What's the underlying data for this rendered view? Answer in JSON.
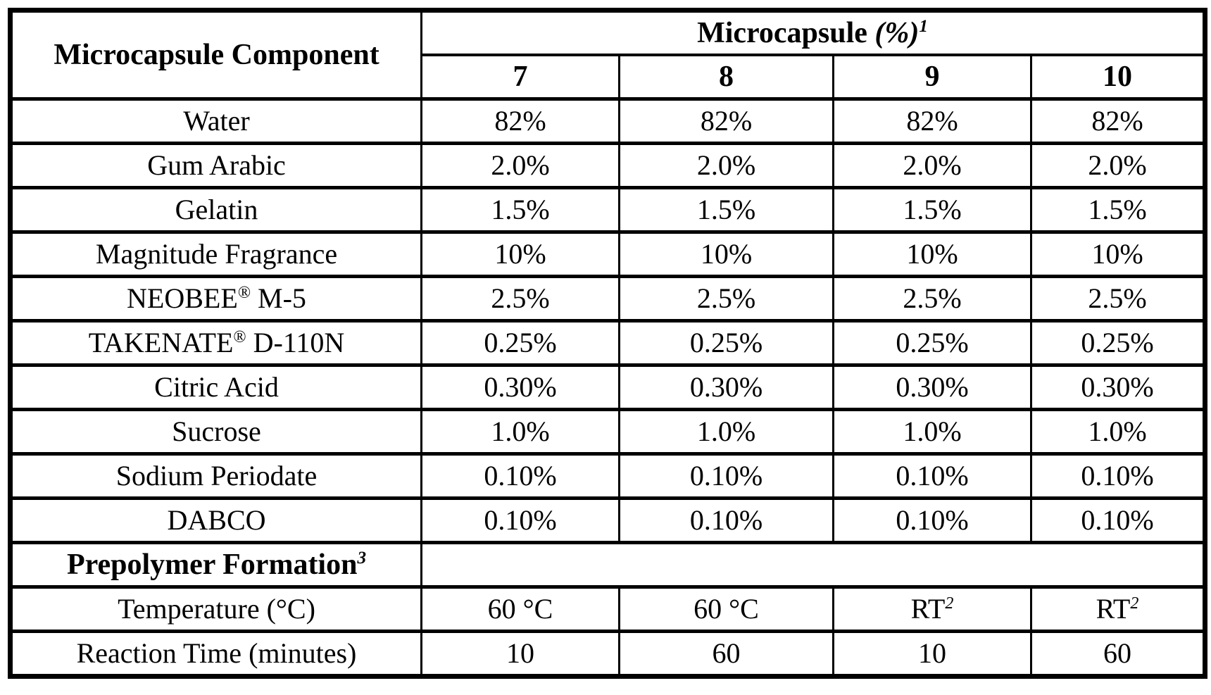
{
  "table": {
    "header": {
      "component_label": [
        {
          "text": "Microcapsule Component",
          "bold": true
        }
      ],
      "group_label": [
        {
          "text": "Microcapsule ",
          "bold": true
        },
        {
          "text": "(%)",
          "bold": true,
          "italic": true
        },
        {
          "text": "1",
          "sup": true,
          "italic": true,
          "bold": true
        }
      ],
      "sample_columns": [
        "7",
        "8",
        "9",
        "10"
      ]
    },
    "rows": [
      {
        "type": "data",
        "label": [
          {
            "text": "Water"
          }
        ],
        "values": [
          [
            {
              "text": "82%"
            }
          ],
          [
            {
              "text": "82%"
            }
          ],
          [
            {
              "text": "82%"
            }
          ],
          [
            {
              "text": "82%"
            }
          ]
        ]
      },
      {
        "type": "data",
        "label": [
          {
            "text": "Gum Arabic"
          }
        ],
        "values": [
          [
            {
              "text": "2.0%"
            }
          ],
          [
            {
              "text": "2.0%"
            }
          ],
          [
            {
              "text": "2.0%"
            }
          ],
          [
            {
              "text": "2.0%"
            }
          ]
        ]
      },
      {
        "type": "data",
        "label": [
          {
            "text": "Gelatin"
          }
        ],
        "values": [
          [
            {
              "text": "1.5%"
            }
          ],
          [
            {
              "text": "1.5%"
            }
          ],
          [
            {
              "text": "1.5%"
            }
          ],
          [
            {
              "text": "1.5%"
            }
          ]
        ]
      },
      {
        "type": "data",
        "label": [
          {
            "text": "Magnitude Fragrance"
          }
        ],
        "values": [
          [
            {
              "text": "10%"
            }
          ],
          [
            {
              "text": "10%"
            }
          ],
          [
            {
              "text": "10%"
            }
          ],
          [
            {
              "text": "10%"
            }
          ]
        ]
      },
      {
        "type": "data",
        "label": [
          {
            "text": "NEOBEE"
          },
          {
            "text": "®",
            "sup": true
          },
          {
            "text": " M-5"
          }
        ],
        "values": [
          [
            {
              "text": "2.5%"
            }
          ],
          [
            {
              "text": "2.5%"
            }
          ],
          [
            {
              "text": "2.5%"
            }
          ],
          [
            {
              "text": "2.5%"
            }
          ]
        ]
      },
      {
        "type": "data",
        "label": [
          {
            "text": "TAKENATE"
          },
          {
            "text": "®",
            "sup": true
          },
          {
            "text": " D-110N"
          }
        ],
        "values": [
          [
            {
              "text": "0.25%"
            }
          ],
          [
            {
              "text": "0.25%"
            }
          ],
          [
            {
              "text": "0.25%"
            }
          ],
          [
            {
              "text": "0.25%"
            }
          ]
        ]
      },
      {
        "type": "data",
        "label": [
          {
            "text": "Citric Acid"
          }
        ],
        "values": [
          [
            {
              "text": "0.30%"
            }
          ],
          [
            {
              "text": "0.30%"
            }
          ],
          [
            {
              "text": "0.30%"
            }
          ],
          [
            {
              "text": "0.30%"
            }
          ]
        ]
      },
      {
        "type": "data",
        "label": [
          {
            "text": "Sucrose"
          }
        ],
        "values": [
          [
            {
              "text": "1.0%"
            }
          ],
          [
            {
              "text": "1.0%"
            }
          ],
          [
            {
              "text": "1.0%"
            }
          ],
          [
            {
              "text": "1.0%"
            }
          ]
        ]
      },
      {
        "type": "data",
        "label": [
          {
            "text": "Sodium Periodate"
          }
        ],
        "values": [
          [
            {
              "text": "0.10%"
            }
          ],
          [
            {
              "text": "0.10%"
            }
          ],
          [
            {
              "text": "0.10%"
            }
          ],
          [
            {
              "text": "0.10%"
            }
          ]
        ]
      },
      {
        "type": "data",
        "label": [
          {
            "text": "DABCO"
          }
        ],
        "values": [
          [
            {
              "text": "0.10%"
            }
          ],
          [
            {
              "text": "0.10%"
            }
          ],
          [
            {
              "text": "0.10%"
            }
          ],
          [
            {
              "text": "0.10%"
            }
          ]
        ]
      },
      {
        "type": "section",
        "label": [
          {
            "text": "Prepolymer Formation",
            "bold": true
          },
          {
            "text": "3",
            "sup": true,
            "italic": true,
            "bold": true
          }
        ]
      },
      {
        "type": "data",
        "label": [
          {
            "text": "Temperature (°C)"
          }
        ],
        "values": [
          [
            {
              "text": "60 °C"
            }
          ],
          [
            {
              "text": "60 °C"
            }
          ],
          [
            {
              "text": "RT"
            },
            {
              "text": "2",
              "sup": true,
              "italic": true
            }
          ],
          [
            {
              "text": "RT"
            },
            {
              "text": "2",
              "sup": true,
              "italic": true
            }
          ]
        ]
      },
      {
        "type": "data",
        "label": [
          {
            "text": "Reaction Time (minutes)"
          }
        ],
        "values": [
          [
            {
              "text": "10"
            }
          ],
          [
            {
              "text": "60"
            }
          ],
          [
            {
              "text": "10"
            }
          ],
          [
            {
              "text": "60"
            }
          ]
        ]
      }
    ]
  }
}
